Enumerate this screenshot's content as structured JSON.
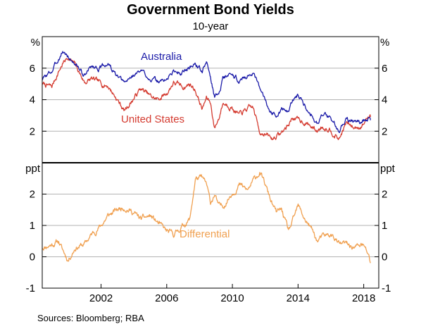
{
  "title": "Government Bond Yields",
  "subtitle": "10-year",
  "source": "Sources:  Bloomberg; RBA",
  "colors": {
    "australia": "#1a1aa8",
    "united_states": "#d43a2f",
    "differential": "#f0a050",
    "grid": "#b3b3b3",
    "axis": "#000000"
  },
  "chart_data": [
    {
      "panel": "top",
      "type": "line",
      "unit_label": "%",
      "ylim": [
        0,
        8
      ],
      "yticks": [
        2,
        4,
        6
      ],
      "xlim": [
        "1998-06",
        "2018-12"
      ],
      "x_ticks": [
        "2002",
        "2006",
        "2010",
        "2014",
        "2018"
      ],
      "grid": true,
      "series": [
        {
          "name": "Australia",
          "x": [
            "1998-06",
            "1999-01",
            "1999-06",
            "1999-09",
            "2000-01",
            "2000-06",
            "2001-01",
            "2001-06",
            "2002-01",
            "2002-06",
            "2003-01",
            "2003-06",
            "2004-01",
            "2004-06",
            "2005-01",
            "2005-06",
            "2006-01",
            "2006-06",
            "2007-01",
            "2007-06",
            "2007-10",
            "2008-03",
            "2008-06",
            "2008-09",
            "2008-12",
            "2009-03",
            "2009-06",
            "2009-12",
            "2010-06",
            "2010-12",
            "2011-04",
            "2011-09",
            "2011-12",
            "2012-06",
            "2012-09",
            "2013-01",
            "2013-06",
            "2013-09",
            "2014-01",
            "2014-06",
            "2014-12",
            "2015-03",
            "2015-06",
            "2015-12",
            "2016-04",
            "2016-07",
            "2016-12",
            "2017-06",
            "2017-12",
            "2018-04",
            "2018-06"
          ],
          "y": [
            5.3,
            5.8,
            6.6,
            7.1,
            6.7,
            6.3,
            5.5,
            6.1,
            6.0,
            6.3,
            5.4,
            5.0,
            5.6,
            5.8,
            5.4,
            5.1,
            5.3,
            5.8,
            5.8,
            6.1,
            6.3,
            5.8,
            6.4,
            5.4,
            4.2,
            4.4,
            5.4,
            5.6,
            5.2,
            5.6,
            5.7,
            4.6,
            4.2,
            3.1,
            3.1,
            3.4,
            3.2,
            4.0,
            4.3,
            3.7,
            3.0,
            2.6,
            3.0,
            2.9,
            2.5,
            1.9,
            2.9,
            2.5,
            2.6,
            2.8,
            2.7
          ]
        },
        {
          "name": "United States",
          "x": [
            "1998-06",
            "1999-01",
            "1999-06",
            "1999-09",
            "2000-01",
            "2000-06",
            "2001-01",
            "2001-06",
            "2002-01",
            "2002-06",
            "2003-01",
            "2003-06",
            "2004-01",
            "2004-06",
            "2005-01",
            "2005-06",
            "2006-01",
            "2006-06",
            "2007-01",
            "2007-06",
            "2007-10",
            "2008-03",
            "2008-06",
            "2008-09",
            "2008-12",
            "2009-03",
            "2009-06",
            "2009-12",
            "2010-06",
            "2010-12",
            "2011-04",
            "2011-09",
            "2011-12",
            "2012-06",
            "2012-09",
            "2013-01",
            "2013-06",
            "2013-09",
            "2014-01",
            "2014-06",
            "2014-12",
            "2015-03",
            "2015-06",
            "2015-12",
            "2016-04",
            "2016-07",
            "2016-12",
            "2017-06",
            "2017-12",
            "2018-04",
            "2018-06"
          ],
          "y": [
            5.0,
            4.8,
            5.8,
            6.3,
            6.7,
            6.2,
            5.1,
            5.3,
            5.0,
            4.9,
            4.0,
            3.3,
            4.1,
            4.7,
            4.2,
            4.0,
            4.4,
            5.1,
            4.8,
            5.0,
            4.6,
            3.4,
            4.1,
            3.8,
            2.2,
            2.8,
            3.8,
            3.6,
            3.0,
            3.4,
            3.5,
            2.0,
            1.9,
            1.5,
            1.7,
            1.9,
            2.4,
            2.9,
            2.7,
            2.6,
            2.2,
            2.0,
            2.3,
            2.2,
            1.8,
            1.5,
            2.5,
            2.2,
            2.4,
            2.9,
            2.9
          ]
        }
      ],
      "annotations": [
        "Australia",
        "United States"
      ]
    },
    {
      "panel": "bottom",
      "type": "line",
      "unit_label": "ppt",
      "ylim": [
        -1,
        3
      ],
      "yticks": [
        -1,
        0,
        1,
        2
      ],
      "xlim": [
        "1998-06",
        "2018-12"
      ],
      "x_ticks": [
        "2002",
        "2006",
        "2010",
        "2014",
        "2018"
      ],
      "grid": true,
      "series": [
        {
          "name": "Differential",
          "x": [
            "1998-06",
            "1999-01",
            "1999-06",
            "1999-09",
            "2000-01",
            "2000-06",
            "2001-01",
            "2001-06",
            "2002-01",
            "2002-06",
            "2003-01",
            "2003-06",
            "2004-01",
            "2004-06",
            "2005-01",
            "2005-06",
            "2006-01",
            "2006-06",
            "2007-01",
            "2007-06",
            "2007-10",
            "2008-03",
            "2008-06",
            "2008-09",
            "2008-12",
            "2009-03",
            "2009-06",
            "2009-12",
            "2010-06",
            "2010-12",
            "2011-04",
            "2011-09",
            "2011-12",
            "2012-06",
            "2012-09",
            "2013-01",
            "2013-06",
            "2013-09",
            "2014-01",
            "2014-06",
            "2014-12",
            "2015-03",
            "2015-06",
            "2015-12",
            "2016-04",
            "2016-07",
            "2016-12",
            "2017-06",
            "2017-12",
            "2018-04",
            "2018-06"
          ],
          "y": [
            0.3,
            0.4,
            0.5,
            0.2,
            -0.1,
            0.3,
            0.4,
            0.7,
            1.0,
            1.3,
            1.5,
            1.6,
            1.4,
            1.2,
            1.3,
            1.1,
            0.8,
            0.7,
            1.0,
            1.2,
            2.5,
            2.5,
            2.3,
            1.7,
            2.0,
            1.6,
            1.6,
            2.0,
            2.3,
            2.1,
            2.4,
            2.7,
            2.4,
            1.7,
            1.4,
            1.5,
            0.8,
            1.1,
            1.6,
            1.2,
            0.8,
            0.5,
            0.6,
            0.7,
            0.6,
            0.4,
            0.4,
            0.3,
            0.4,
            0.1,
            -0.2
          ]
        }
      ],
      "annotations": [
        "Differential"
      ]
    }
  ]
}
